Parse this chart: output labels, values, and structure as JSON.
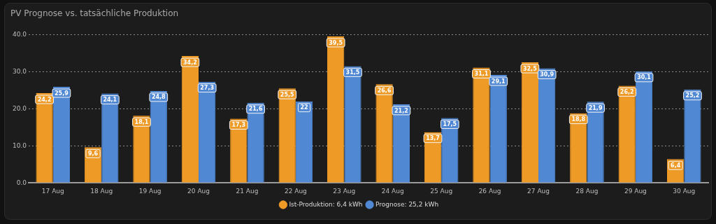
{
  "chart_data": {
    "type": "bar",
    "title": "PV Prognose vs. tatsächliche Produktion",
    "categories": [
      "17 Aug",
      "18 Aug",
      "19 Aug",
      "20 Aug",
      "21 Aug",
      "22 Aug",
      "23 Aug",
      "24 Aug",
      "25 Aug",
      "26 Aug",
      "27 Aug",
      "28 Aug",
      "29 Aug",
      "30 Aug"
    ],
    "series": [
      {
        "name": "Ist-Produktion: 6,4 kWh",
        "color": "#ee9a26",
        "values": [
          24.2,
          9.6,
          18.1,
          34.2,
          17.3,
          25.5,
          39.5,
          26.6,
          13.7,
          31.1,
          32.5,
          18.8,
          26.2,
          6.4
        ],
        "value_labels": [
          "24,2",
          "9,6",
          "18,1",
          "34,2",
          "17,3",
          "25,5",
          "39,5",
          "26,6",
          "13,7",
          "31,1",
          "32,5",
          "18,8",
          "26,2",
          "6,4"
        ]
      },
      {
        "name": "Prognose: 25,2 kWh",
        "color": "#5088d4",
        "values": [
          25.9,
          24.1,
          24.8,
          27.3,
          21.6,
          22,
          31.5,
          21.2,
          17.5,
          29.1,
          30.9,
          21.9,
          30.1,
          25.2
        ],
        "value_labels": [
          "25,9",
          "24,1",
          "24,8",
          "27,3",
          "21,6",
          "22",
          "31,5",
          "21,2",
          "17,5",
          "29,1",
          "30,9",
          "21,9",
          "30,1",
          "25,2"
        ]
      }
    ],
    "ylim": [
      0,
      40
    ],
    "yticks": [
      {
        "value": 0,
        "label": "0.0"
      },
      {
        "value": 10,
        "label": "10.0"
      },
      {
        "value": 20,
        "label": "20.0"
      },
      {
        "value": 30,
        "label": "30.0"
      },
      {
        "value": 40,
        "label": "40.0"
      }
    ],
    "grid": "y",
    "legend": "bottom"
  }
}
